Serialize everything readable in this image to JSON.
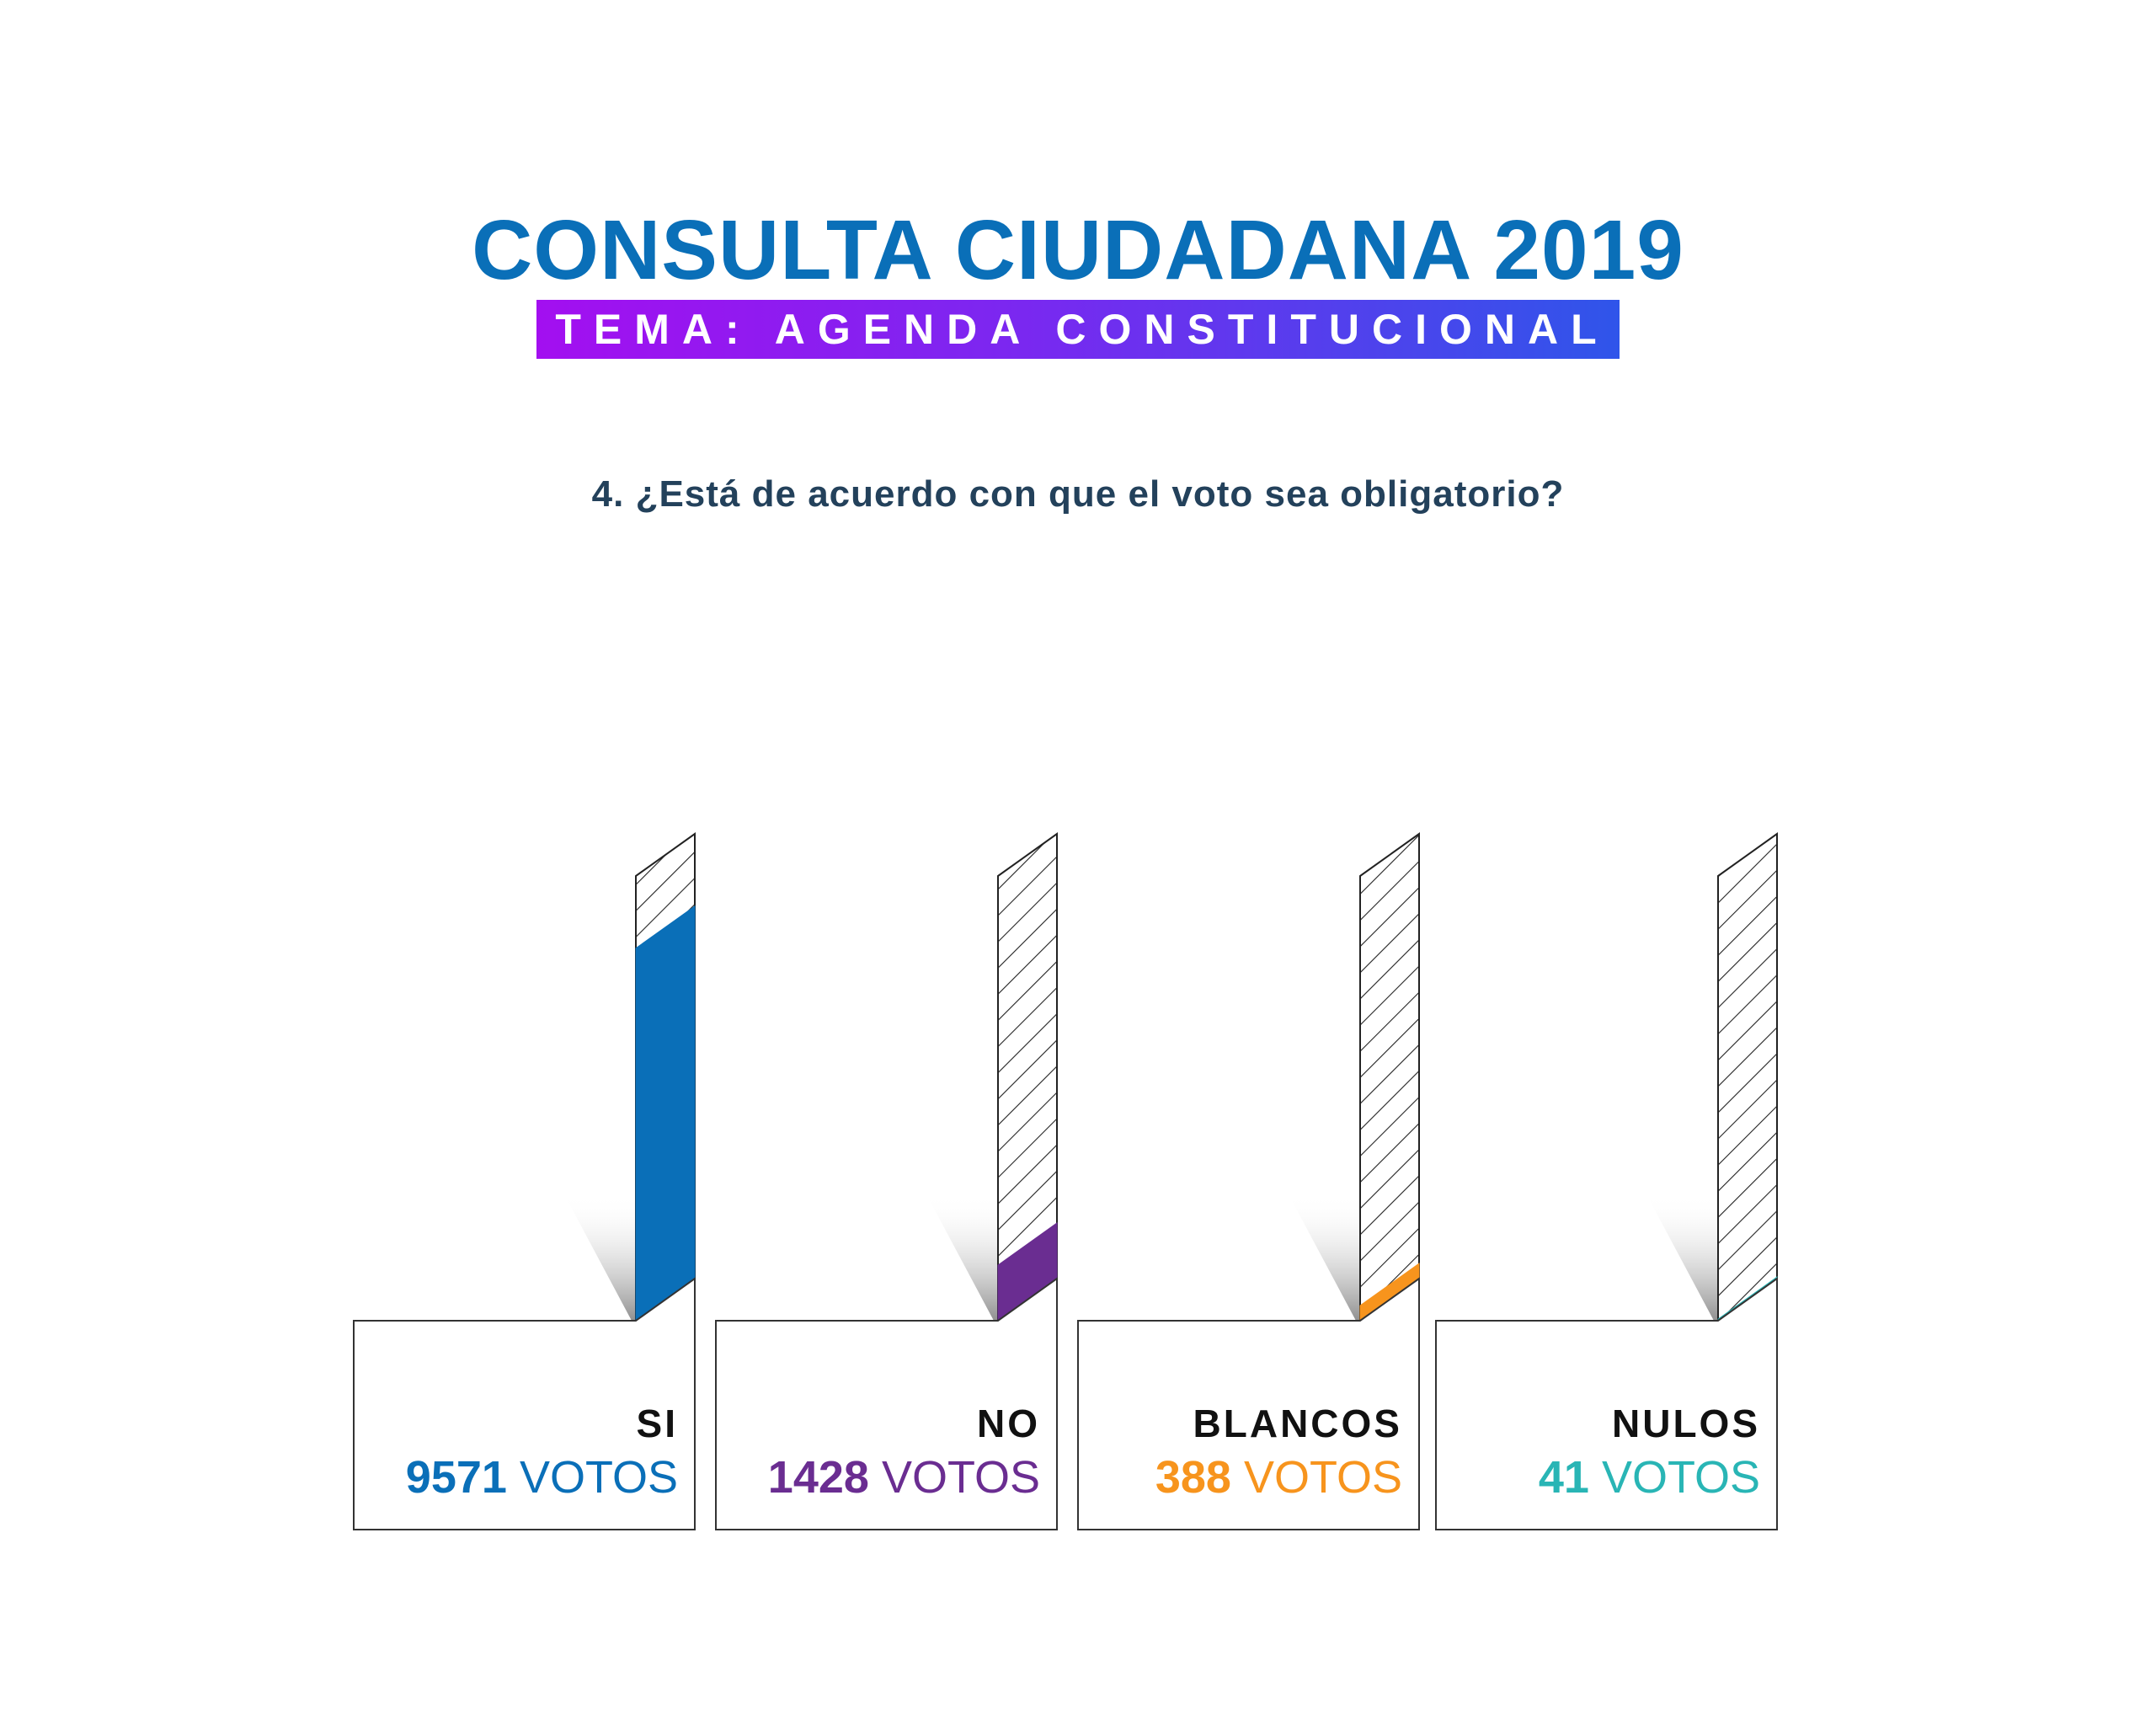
{
  "title": "CONSULTA CIUDADANA 2019",
  "subtitle": "TEMA: AGENDA CONSTITUCIONAL",
  "question": "4. ¿Está de acuerdo con que el voto sea obligatorio?",
  "unit_label": "VOTOS",
  "chart_data": {
    "type": "bar",
    "categories": [
      "SI",
      "NO",
      "BLANCOS",
      "NULOS"
    ],
    "values": [
      9571,
      1428,
      388,
      41
    ],
    "total": 11428,
    "colors": [
      "#0a6fb8",
      "#6a2d91",
      "#f7941d",
      "#29b5b5"
    ]
  }
}
